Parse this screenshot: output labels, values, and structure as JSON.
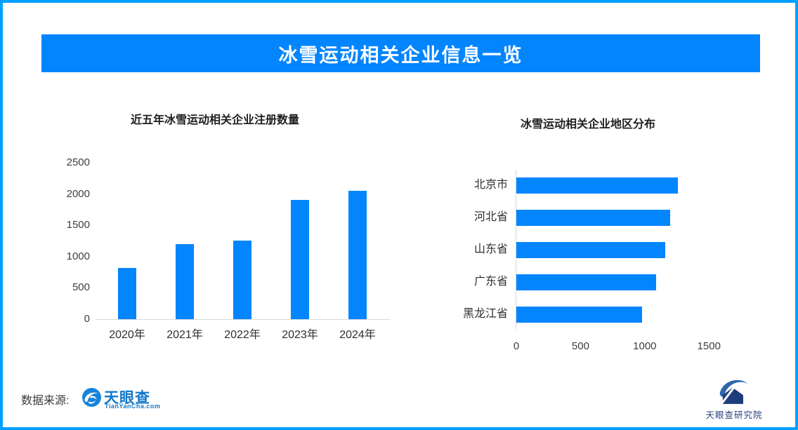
{
  "banner": {
    "title": "冰雪运动相关企业信息一览",
    "bg_color": "#0385FE",
    "border_color": "#00A0FF"
  },
  "chart_data": [
    {
      "type": "bar",
      "title": "近五年冰雪运动相关企业注册数量",
      "categories": [
        "2020年",
        "2021年",
        "2022年",
        "2023年",
        "2024年"
      ],
      "values": [
        820,
        1200,
        1250,
        1910,
        2050
      ],
      "y_ticks": [
        0,
        500,
        1000,
        1500,
        2000,
        2500
      ],
      "ylim": [
        0,
        2500
      ],
      "bar_color": "#0385FE",
      "grid": false,
      "legend": "none"
    },
    {
      "type": "bar-horizontal",
      "title": "冰雪运动相关企业地区分布",
      "categories": [
        "北京市",
        "河北省",
        "山东省",
        "广东省",
        "黑龙江省"
      ],
      "values": [
        1260,
        1200,
        1160,
        1090,
        980
      ],
      "x_ticks": [
        0,
        500,
        1000,
        1500
      ],
      "xlim": [
        0,
        1750
      ],
      "bar_color": "#0385FE",
      "grid": false,
      "legend": "none"
    }
  ],
  "footer": {
    "source_label": "数据来源:",
    "tianyancha_name": "天眼查",
    "tianyancha_sub": "TianYanCha.com",
    "tianyancha_color": "#1377C8",
    "institute_name": "天眼查研究院",
    "institute_color": "#2A3F7E"
  }
}
